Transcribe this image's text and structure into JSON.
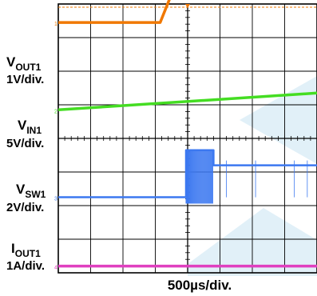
{
  "chart_data": {
    "type": "line",
    "time_scale_label": "500µs/div.",
    "grid": {
      "horizontal_divisions": 8,
      "vertical_divisions": 8
    },
    "trigger_marker_color": "#f07800",
    "channels": [
      {
        "id": "vout1",
        "label_main": "V",
        "label_sub": "OUT1",
        "scale": "1V/div.",
        "marker": "1",
        "color": "#f07800",
        "points": [
          [
            0,
            1.45
          ],
          [
            3.15,
            1.45
          ],
          [
            4.15,
            3.85
          ],
          [
            8,
            3.85
          ]
        ]
      },
      {
        "id": "vin1",
        "label_main": "V",
        "label_sub": "IN1",
        "scale": "5V/div.",
        "marker": "2",
        "color": "#44dd22",
        "points": [
          [
            0,
            0.85
          ],
          [
            8,
            1.35
          ]
        ]
      },
      {
        "id": "vsw1",
        "label_main": "V",
        "label_sub": "SW1",
        "scale": "2V/div.",
        "marker": "3",
        "color": "#3c78f0",
        "points": [
          [
            0,
            0
          ],
          [
            3.95,
            0
          ],
          [
            3.95,
            1.4
          ],
          [
            4.8,
            1.4
          ],
          [
            4.8,
            0.95
          ],
          [
            8,
            0.95
          ]
        ]
      },
      {
        "id": "iout1",
        "label_main": "I",
        "label_sub": "OUT1",
        "scale": "1A/div.",
        "marker": "4",
        "color": "#e040c0",
        "points": [
          [
            0,
            0
          ],
          [
            8,
            0
          ]
        ]
      }
    ]
  }
}
